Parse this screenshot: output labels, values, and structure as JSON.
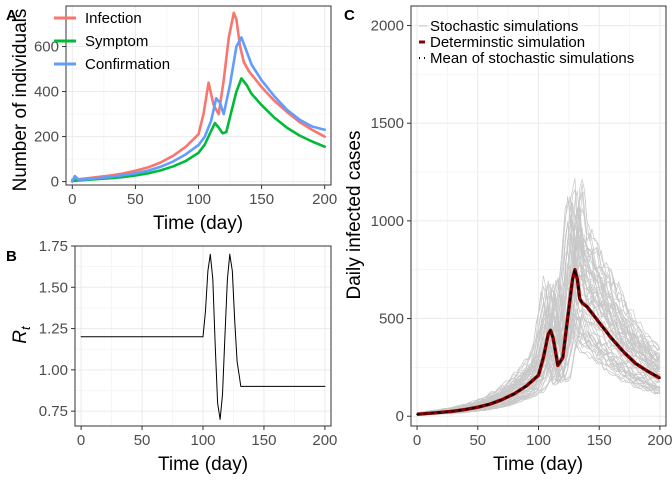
{
  "chart_data": [
    {
      "panel": "A",
      "type": "line",
      "ylabel": "Number of individuals",
      "xlabel": "Time (day)",
      "xlim": [
        -5,
        205
      ],
      "ylim": [
        -15,
        780
      ],
      "xticks": [
        0,
        50,
        100,
        150,
        200
      ],
      "yticks": [
        0,
        200,
        400,
        600
      ],
      "grid": true,
      "legend_position": "top-left",
      "series": [
        {
          "name": "Infection",
          "color": "#F8766D",
          "x": [
            0,
            10,
            20,
            30,
            40,
            50,
            60,
            70,
            80,
            90,
            100,
            104,
            108,
            112,
            116,
            120,
            124,
            128,
            130,
            133,
            136,
            140,
            150,
            160,
            170,
            180,
            190,
            200
          ],
          "y": [
            8,
            14,
            20,
            27,
            36,
            48,
            63,
            85,
            115,
            155,
            210,
            300,
            440,
            340,
            300,
            450,
            640,
            750,
            720,
            600,
            530,
            490,
            420,
            360,
            310,
            265,
            230,
            200
          ]
        },
        {
          "name": "Symptom",
          "color": "#00BA38",
          "x": [
            0,
            10,
            20,
            30,
            40,
            50,
            60,
            70,
            80,
            90,
            100,
            105,
            110,
            113,
            116,
            119,
            122,
            126,
            130,
            134,
            138,
            142,
            150,
            160,
            170,
            180,
            190,
            200
          ],
          "y": [
            3,
            7,
            11,
            15,
            20,
            27,
            37,
            50,
            68,
            92,
            128,
            165,
            225,
            260,
            240,
            215,
            220,
            310,
            400,
            458,
            430,
            390,
            340,
            285,
            240,
            205,
            178,
            155
          ]
        },
        {
          "name": "Confirmation",
          "color": "#619CFF",
          "x": [
            0,
            2,
            5,
            10,
            20,
            30,
            40,
            50,
            60,
            70,
            80,
            90,
            100,
            105,
            110,
            114,
            117,
            120,
            125,
            130,
            134,
            138,
            142,
            150,
            160,
            170,
            180,
            190,
            200
          ],
          "y": [
            0,
            25,
            8,
            10,
            15,
            21,
            28,
            37,
            49,
            66,
            90,
            122,
            162,
            200,
            270,
            370,
            350,
            300,
            430,
            600,
            640,
            580,
            520,
            450,
            380,
            320,
            275,
            245,
            230
          ]
        }
      ]
    },
    {
      "panel": "B",
      "type": "line",
      "ylabel": "R_t",
      "xlabel": "Time (day)",
      "xlim": [
        -5,
        205
      ],
      "ylim": [
        0.66,
        1.75
      ],
      "xticks": [
        0,
        50,
        100,
        150,
        200
      ],
      "yticks": [
        0.75,
        1.0,
        1.25,
        1.5,
        1.75
      ],
      "ytick_labels": [
        "0.75",
        "1.00",
        "1.25",
        "1.50",
        "1.75"
      ],
      "grid": true,
      "series": [
        {
          "name": "",
          "color": "#000000",
          "x": [
            0,
            100,
            102,
            104,
            106,
            108,
            110,
            112,
            114,
            116,
            118,
            120,
            122,
            124,
            126,
            128,
            130,
            131,
            132,
            200
          ],
          "y": [
            1.2,
            1.2,
            1.35,
            1.6,
            1.7,
            1.55,
            1.15,
            0.8,
            0.7,
            0.85,
            1.2,
            1.55,
            1.7,
            1.6,
            1.3,
            1.05,
            0.95,
            0.9,
            0.9,
            0.9
          ]
        }
      ]
    },
    {
      "panel": "C",
      "type": "line",
      "ylabel": "Daily infected cases",
      "xlabel": "Time (day)",
      "xlim": [
        -5,
        205
      ],
      "ylim": [
        -50,
        2100
      ],
      "xticks": [
        0,
        50,
        100,
        150,
        200
      ],
      "yticks": [
        0,
        500,
        1000,
        1500,
        2000
      ],
      "grid": true,
      "legend_position": "top-left",
      "legend": [
        "Stochastic simulations",
        "Determinstic simulation",
        "Mean of stochastic simulations"
      ],
      "stochastic_color": "#C8C8C8",
      "deterministic_color": "#8B0000",
      "mean_color": "#000000",
      "mean_curve": {
        "x": [
          0,
          10,
          20,
          30,
          40,
          50,
          60,
          70,
          80,
          90,
          100,
          104,
          108,
          110,
          112,
          116,
          120,
          124,
          128,
          130,
          132,
          134,
          136,
          140,
          150,
          160,
          170,
          180,
          190,
          200
        ],
        "y": [
          10,
          15,
          20,
          26,
          35,
          46,
          62,
          85,
          115,
          155,
          210,
          300,
          420,
          440,
          400,
          260,
          300,
          500,
          700,
          750,
          700,
          600,
          580,
          560,
          480,
          400,
          330,
          270,
          230,
          195
        ]
      }
    }
  ]
}
